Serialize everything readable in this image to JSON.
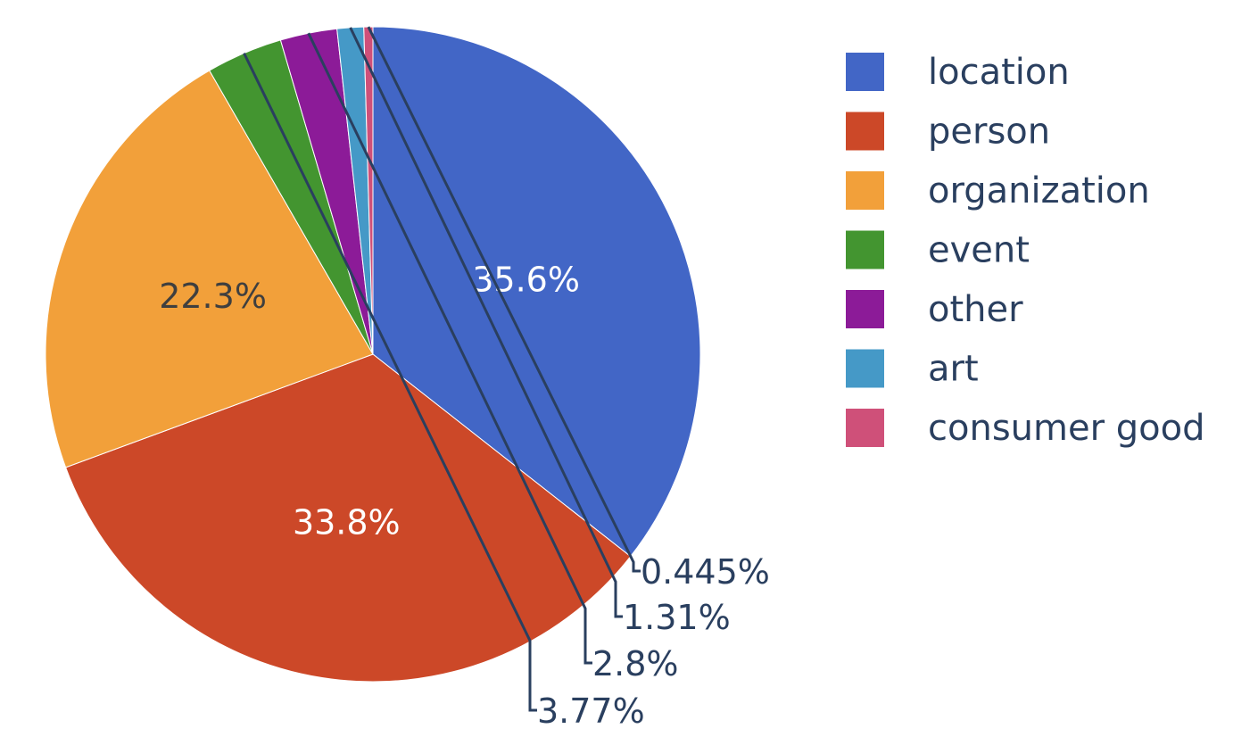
{
  "chart_data": {
    "type": "pie",
    "title": "",
    "legend_position": "right",
    "slices": [
      {
        "label": "location",
        "value": 35.6,
        "text": "35.6%",
        "color": "#4266c6",
        "text_color": "#ffffff",
        "text_position": "inside"
      },
      {
        "label": "person",
        "value": 33.8,
        "text": "33.8%",
        "color": "#cc4828",
        "text_color": "#ffffff",
        "text_position": "inside"
      },
      {
        "label": "organization",
        "value": 22.3,
        "text": "22.3%",
        "color": "#f2a03a",
        "text_color": "#3f3f3f",
        "text_position": "inside"
      },
      {
        "label": "event",
        "value": 3.77,
        "text": "3.77%",
        "color": "#439530",
        "text_color": "#2a3f5f",
        "text_position": "outside"
      },
      {
        "label": "other",
        "value": 2.8,
        "text": "2.8%",
        "color": "#8c1b98",
        "text_color": "#2a3f5f",
        "text_position": "outside"
      },
      {
        "label": "art",
        "value": 1.31,
        "text": "1.31%",
        "color": "#4599c7",
        "text_color": "#2a3f5f",
        "text_position": "outside"
      },
      {
        "label": "consumer good",
        "value": 0.445,
        "text": "0.445%",
        "color": "#cf5079",
        "text_color": "#2a3f5f",
        "text_position": "outside"
      }
    ]
  }
}
